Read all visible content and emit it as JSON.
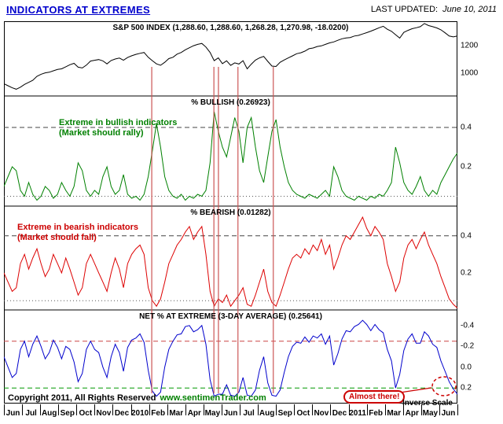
{
  "header": {
    "title": "INDICATORS AT EXTREMES",
    "last_updated_label": "LAST UPDATED:",
    "last_updated_date": "June 10, 2011"
  },
  "footer": {
    "copyright": "Copyright 2011, All Rights Reserved",
    "website": "www.sentimenTrader.com"
  },
  "annotations": {
    "bullish_line1": "Extreme in bullish indicators",
    "bullish_line2": "(Market should rally)",
    "bearish_line1": "Extreme in bearish indicators",
    "bearish_line2": "(Market should fall)",
    "almost_there": "Almost there!",
    "inverse_scale": "Inverse Scale"
  },
  "x_axis": {
    "months": [
      "Jun",
      "Jul",
      "Aug",
      "Sep",
      "Oct",
      "Nov",
      "Dec",
      "2010",
      "Feb",
      "Mar",
      "Apr",
      "May",
      "Jun",
      "Jul",
      "Aug",
      "Sep",
      "Oct",
      "Nov",
      "Dec",
      "2011",
      "Feb",
      "Mar",
      "Apr",
      "May",
      "Jun"
    ]
  },
  "event_lines": {
    "color": "#cc5555",
    "positions": [
      0.326,
      0.463,
      0.473,
      0.516,
      0.594
    ]
  },
  "chart_data": [
    {
      "id": "sp500",
      "type": "line",
      "title": "S&P 500 INDEX (1,288.60, 1,288.60, 1,268.28, 1,270.98, -18.0200)",
      "color": "#000000",
      "axis": {
        "top": 1380,
        "bottom": 830
      },
      "yticks": [
        {
          "v": 1200,
          "label": "1200"
        },
        {
          "v": 1000,
          "label": "1000"
        }
      ],
      "thresholds": [],
      "values": [
        920,
        905,
        890,
        880,
        895,
        915,
        930,
        945,
        975,
        990,
        1000,
        1005,
        1015,
        1025,
        1030,
        1045,
        1060,
        1070,
        1042,
        1036,
        1057,
        1087,
        1093,
        1098,
        1088,
        1066,
        1091,
        1102,
        1109,
        1093,
        1113,
        1126,
        1136,
        1144,
        1150,
        1115,
        1090,
        1066,
        1056,
        1078,
        1105,
        1115,
        1138,
        1150,
        1170,
        1185,
        1200,
        1210,
        1217,
        1190,
        1150,
        1090,
        1110,
        1068,
        1089,
        1055,
        1074,
        1065,
        1090,
        1030,
        1064,
        1094,
        1110,
        1121,
        1085,
        1050,
        1047,
        1078,
        1095,
        1110,
        1125,
        1141,
        1148,
        1160,
        1178,
        1183,
        1194,
        1199,
        1210,
        1221,
        1228,
        1240,
        1251,
        1257,
        1260,
        1271,
        1276,
        1286,
        1296,
        1307,
        1319,
        1332,
        1343,
        1321,
        1306,
        1281,
        1256,
        1298,
        1313,
        1325,
        1332,
        1340,
        1363,
        1348,
        1340,
        1331,
        1317,
        1295,
        1271,
        1265,
        1271
      ]
    },
    {
      "id": "pct_bullish",
      "type": "line",
      "title": "% BULLISH (0.26923)",
      "color": "#008000",
      "axis": {
        "top": 0.56,
        "bottom": 0.0
      },
      "yticks": [
        {
          "v": 0.4,
          "label": "0.4"
        },
        {
          "v": 0.2,
          "label": "0.2"
        }
      ],
      "thresholds": [
        {
          "v": 0.4,
          "color": "#444444",
          "dash": "6,4"
        },
        {
          "v": 0.05,
          "color": "#555555",
          "dash": "1,3"
        }
      ],
      "values": [
        0.1,
        0.15,
        0.2,
        0.18,
        0.08,
        0.05,
        0.12,
        0.06,
        0.03,
        0.05,
        0.1,
        0.08,
        0.04,
        0.06,
        0.12,
        0.08,
        0.05,
        0.1,
        0.22,
        0.18,
        0.08,
        0.05,
        0.08,
        0.06,
        0.15,
        0.2,
        0.1,
        0.06,
        0.08,
        0.16,
        0.06,
        0.04,
        0.05,
        0.03,
        0.06,
        0.15,
        0.28,
        0.42,
        0.3,
        0.15,
        0.08,
        0.05,
        0.04,
        0.06,
        0.03,
        0.05,
        0.04,
        0.06,
        0.05,
        0.08,
        0.22,
        0.48,
        0.38,
        0.3,
        0.25,
        0.35,
        0.45,
        0.38,
        0.22,
        0.4,
        0.45,
        0.3,
        0.18,
        0.12,
        0.25,
        0.38,
        0.44,
        0.3,
        0.2,
        0.12,
        0.08,
        0.06,
        0.05,
        0.04,
        0.06,
        0.05,
        0.04,
        0.06,
        0.08,
        0.05,
        0.2,
        0.15,
        0.08,
        0.05,
        0.04,
        0.03,
        0.05,
        0.04,
        0.03,
        0.05,
        0.04,
        0.06,
        0.05,
        0.08,
        0.12,
        0.3,
        0.22,
        0.12,
        0.08,
        0.06,
        0.1,
        0.15,
        0.08,
        0.05,
        0.08,
        0.06,
        0.12,
        0.16,
        0.2,
        0.24,
        0.27
      ]
    },
    {
      "id": "pct_bearish",
      "type": "line",
      "title": "% BEARISH (0.01282)",
      "color": "#dd0000",
      "axis": {
        "top": 0.56,
        "bottom": 0.0
      },
      "yticks": [
        {
          "v": 0.4,
          "label": "0.4"
        },
        {
          "v": 0.2,
          "label": "0.2"
        }
      ],
      "thresholds": [
        {
          "v": 0.4,
          "color": "#444444",
          "dash": "6,4"
        },
        {
          "v": 0.05,
          "color": "#555555",
          "dash": "1,3"
        }
      ],
      "values": [
        0.2,
        0.15,
        0.1,
        0.12,
        0.25,
        0.3,
        0.22,
        0.28,
        0.33,
        0.25,
        0.18,
        0.22,
        0.3,
        0.25,
        0.2,
        0.28,
        0.22,
        0.15,
        0.08,
        0.12,
        0.25,
        0.3,
        0.25,
        0.2,
        0.15,
        0.1,
        0.2,
        0.28,
        0.22,
        0.12,
        0.25,
        0.3,
        0.33,
        0.35,
        0.3,
        0.12,
        0.05,
        0.02,
        0.06,
        0.15,
        0.25,
        0.3,
        0.35,
        0.38,
        0.42,
        0.45,
        0.38,
        0.42,
        0.45,
        0.3,
        0.1,
        0.02,
        0.06,
        0.04,
        0.08,
        0.02,
        0.05,
        0.08,
        0.12,
        0.03,
        0.02,
        0.08,
        0.15,
        0.22,
        0.1,
        0.04,
        0.02,
        0.08,
        0.15,
        0.22,
        0.28,
        0.3,
        0.28,
        0.33,
        0.3,
        0.35,
        0.32,
        0.38,
        0.3,
        0.35,
        0.22,
        0.28,
        0.35,
        0.4,
        0.38,
        0.42,
        0.46,
        0.5,
        0.44,
        0.4,
        0.45,
        0.42,
        0.38,
        0.25,
        0.18,
        0.1,
        0.15,
        0.28,
        0.35,
        0.38,
        0.33,
        0.38,
        0.42,
        0.35,
        0.3,
        0.25,
        0.18,
        0.12,
        0.06,
        0.03,
        0.01
      ]
    },
    {
      "id": "net_extreme",
      "type": "line",
      "title": "NET % AT EXTREME (3-DAY AVERAGE) (0.25641)",
      "color": "#0000cc",
      "inverse_scale": true,
      "axis": {
        "top": -0.55,
        "bottom": 0.35
      },
      "yticks": [
        {
          "v": -0.4,
          "label": "-0.4"
        },
        {
          "v": -0.2,
          "label": "-0.2"
        },
        {
          "v": 0.0,
          "label": "0.0"
        },
        {
          "v": 0.2,
          "label": "0.2"
        }
      ],
      "thresholds": [
        {
          "v": -0.25,
          "color": "#cc4444",
          "dash": "6,4"
        },
        {
          "v": 0.2,
          "color": "#009900",
          "dash": "6,4"
        }
      ],
      "values": [
        -0.1,
        0.0,
        0.1,
        0.06,
        -0.17,
        -0.25,
        -0.1,
        -0.22,
        -0.3,
        -0.2,
        -0.08,
        -0.14,
        -0.26,
        -0.19,
        -0.08,
        -0.2,
        -0.17,
        -0.05,
        0.14,
        0.06,
        -0.17,
        -0.25,
        -0.17,
        -0.14,
        0.0,
        0.1,
        -0.1,
        -0.22,
        -0.14,
        0.04,
        -0.19,
        -0.26,
        -0.28,
        -0.32,
        -0.24,
        0.03,
        0.23,
        0.28,
        0.24,
        0.0,
        -0.17,
        -0.25,
        -0.31,
        -0.32,
        -0.39,
        -0.4,
        -0.34,
        -0.36,
        -0.4,
        -0.22,
        0.12,
        0.28,
        0.26,
        0.26,
        0.17,
        0.27,
        0.28,
        0.24,
        0.1,
        0.27,
        0.28,
        0.22,
        0.03,
        -0.1,
        0.15,
        0.27,
        0.28,
        0.22,
        0.05,
        -0.1,
        -0.2,
        -0.24,
        -0.23,
        -0.29,
        -0.24,
        -0.3,
        -0.28,
        -0.32,
        -0.22,
        -0.3,
        -0.02,
        -0.13,
        -0.27,
        -0.35,
        -0.34,
        -0.39,
        -0.41,
        -0.45,
        -0.41,
        -0.35,
        -0.41,
        -0.36,
        -0.33,
        -0.17,
        -0.06,
        0.2,
        0.07,
        -0.16,
        -0.27,
        -0.32,
        -0.23,
        -0.23,
        -0.34,
        -0.3,
        -0.22,
        -0.19,
        -0.06,
        0.04,
        0.14,
        0.21,
        0.26
      ]
    }
  ]
}
